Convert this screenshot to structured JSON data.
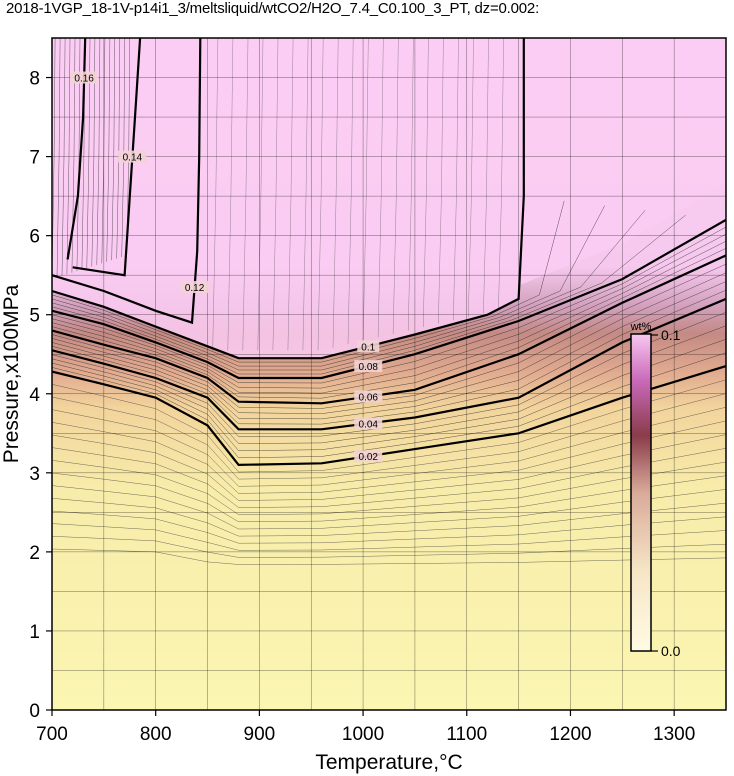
{
  "chart_data": {
    "type": "heatmap",
    "title": "2018-1VGP_18-1V-p14i1_3/meltsliquid/wtCO2/H2O_7.4_C0.100_3_PT, dz=0.002:",
    "xlabel": "Temperature,°C",
    "ylabel": "Pressure,x100MPa",
    "xlim": [
      700,
      1350
    ],
    "ylim": [
      0,
      8.5
    ],
    "x_ticks": [
      "700",
      "800",
      "900",
      "1000",
      "1100",
      "1200",
      "1300"
    ],
    "y_ticks": [
      "0",
      "1",
      "2",
      "3",
      "4",
      "5",
      "6",
      "7",
      "8"
    ],
    "grid": true,
    "colorbar": {
      "unit": "wt%",
      "min_label": "0.0",
      "max_label": "0.1",
      "colors": [
        "#fbf6b2",
        "#f4dca0",
        "#e0a890",
        "#b87478",
        "#d890c8",
        "#f8cdf0"
      ],
      "placement": "right-inside"
    },
    "major_contours": [
      {
        "label": "0.02",
        "points": [
          [
            700,
            4.28
          ],
          [
            750,
            4.12
          ],
          [
            800,
            3.95
          ],
          [
            850,
            3.6
          ],
          [
            880,
            3.1
          ],
          [
            960,
            3.12
          ],
          [
            1050,
            3.3
          ],
          [
            1150,
            3.5
          ],
          [
            1250,
            3.95
          ],
          [
            1350,
            4.35
          ]
        ]
      },
      {
        "label": "0.04",
        "points": [
          [
            700,
            4.55
          ],
          [
            750,
            4.38
          ],
          [
            800,
            4.2
          ],
          [
            850,
            3.95
          ],
          [
            880,
            3.55
          ],
          [
            960,
            3.55
          ],
          [
            1050,
            3.7
          ],
          [
            1150,
            3.95
          ],
          [
            1250,
            4.65
          ],
          [
            1350,
            5.2
          ]
        ]
      },
      {
        "label": "0.06",
        "points": [
          [
            700,
            4.8
          ],
          [
            750,
            4.62
          ],
          [
            800,
            4.45
          ],
          [
            850,
            4.2
          ],
          [
            880,
            3.9
          ],
          [
            960,
            3.88
          ],
          [
            1050,
            4.05
          ],
          [
            1150,
            4.5
          ],
          [
            1250,
            5.15
          ],
          [
            1350,
            5.75
          ]
        ]
      },
      {
        "label": "0.08",
        "points": [
          [
            700,
            5.05
          ],
          [
            750,
            4.88
          ],
          [
            800,
            4.65
          ],
          [
            850,
            4.4
          ],
          [
            880,
            4.2
          ],
          [
            960,
            4.2
          ],
          [
            1050,
            4.5
          ],
          [
            1150,
            4.92
          ],
          [
            1250,
            5.45
          ],
          [
            1350,
            6.2
          ]
        ]
      },
      {
        "label": "0.1",
        "points": [
          [
            700,
            5.3
          ],
          [
            750,
            5.1
          ],
          [
            800,
            4.85
          ],
          [
            850,
            4.6
          ],
          [
            880,
            4.45
          ],
          [
            960,
            4.45
          ],
          [
            1050,
            4.75
          ],
          [
            1120,
            5.0
          ],
          [
            1150,
            5.2
          ],
          [
            1155,
            6.5
          ],
          [
            1155,
            8.5
          ]
        ]
      },
      {
        "label": "0.12",
        "points": [
          [
            700,
            5.5
          ],
          [
            750,
            5.3
          ],
          [
            800,
            5.05
          ],
          [
            835,
            4.9
          ],
          [
            840,
            5.8
          ],
          [
            842,
            7.0
          ],
          [
            843,
            8.5
          ]
        ]
      },
      {
        "label": "0.14",
        "points": [
          [
            720,
            5.6
          ],
          [
            770,
            5.5
          ],
          [
            775,
            6.5
          ],
          [
            780,
            7.5
          ],
          [
            785,
            8.5
          ]
        ]
      },
      {
        "label": "0.16",
        "points": [
          [
            715,
            5.7
          ],
          [
            725,
            6.5
          ],
          [
            730,
            7.5
          ],
          [
            732,
            8.5
          ]
        ]
      }
    ],
    "colorscale_anchor_values": [
      0.0,
      0.02,
      0.04,
      0.06,
      0.08,
      0.1
    ]
  }
}
